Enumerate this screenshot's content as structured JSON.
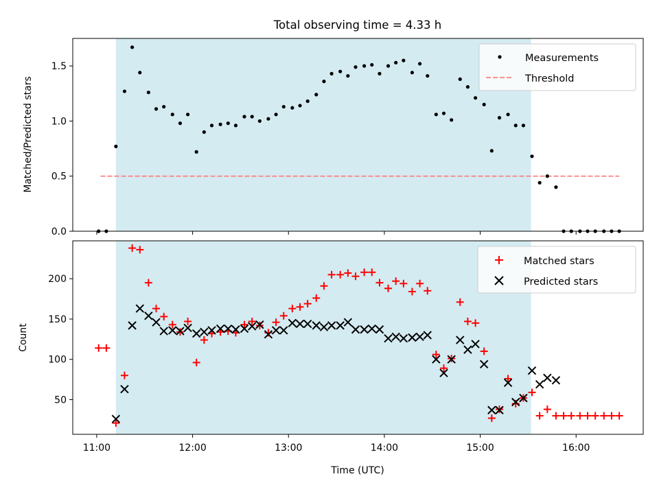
{
  "figure": {
    "title": "Total observing time = 4.33 h",
    "xlabel": "Time (UTC)",
    "xticks": [
      "11:00",
      "12:00",
      "13:00",
      "14:00",
      "15:00",
      "16:00"
    ],
    "colors": {
      "shade": "#d4ebf1",
      "measure": "#000000",
      "threshold": "#ff7f7f",
      "matched": "#ff0000",
      "predicted": "#000000"
    }
  },
  "chart_data": [
    {
      "type": "scatter",
      "ylabel": "Matched/Predicted stars",
      "xlim": [
        10.75,
        16.7
      ],
      "ylim": [
        0,
        1.75
      ],
      "yticks": [
        "0.0",
        "0.5",
        "1.0",
        "1.5"
      ],
      "ytick_values": [
        0,
        0.5,
        1.0,
        1.5
      ],
      "shaded_x": [
        11.2,
        15.53
      ],
      "legend": {
        "placement": "upper right",
        "entries": [
          "Measurements",
          "Threshold"
        ]
      },
      "threshold": {
        "name": "Threshold",
        "x": [
          11.04,
          16.45
        ],
        "y": 0.5
      },
      "series": [
        {
          "name": "Measurements",
          "points": [
            [
              11.02,
              0
            ],
            [
              11.1,
              0
            ],
            [
              11.2,
              0.77
            ],
            [
              11.29,
              1.27
            ],
            [
              11.37,
              1.67
            ],
            [
              11.45,
              1.44
            ],
            [
              11.54,
              1.26
            ],
            [
              11.62,
              1.11
            ],
            [
              11.7,
              1.13
            ],
            [
              11.79,
              1.06
            ],
            [
              11.87,
              0.98
            ],
            [
              11.95,
              1.06
            ],
            [
              12.04,
              0.72
            ],
            [
              12.12,
              0.9
            ],
            [
              12.2,
              0.96
            ],
            [
              12.29,
              0.97
            ],
            [
              12.37,
              0.98
            ],
            [
              12.45,
              0.96
            ],
            [
              12.54,
              1.04
            ],
            [
              12.62,
              1.04
            ],
            [
              12.7,
              1.0
            ],
            [
              12.79,
              1.02
            ],
            [
              12.87,
              1.06
            ],
            [
              12.95,
              1.13
            ],
            [
              13.04,
              1.12
            ],
            [
              13.12,
              1.14
            ],
            [
              13.2,
              1.18
            ],
            [
              13.29,
              1.24
            ],
            [
              13.37,
              1.36
            ],
            [
              13.45,
              1.43
            ],
            [
              13.54,
              1.45
            ],
            [
              13.62,
              1.41
            ],
            [
              13.7,
              1.49
            ],
            [
              13.79,
              1.5
            ],
            [
              13.87,
              1.51
            ],
            [
              13.95,
              1.43
            ],
            [
              14.04,
              1.5
            ],
            [
              14.12,
              1.53
            ],
            [
              14.2,
              1.55
            ],
            [
              14.29,
              1.44
            ],
            [
              14.37,
              1.52
            ],
            [
              14.45,
              1.41
            ],
            [
              14.54,
              1.06
            ],
            [
              14.62,
              1.07
            ],
            [
              14.7,
              1.01
            ],
            [
              14.79,
              1.38
            ],
            [
              14.87,
              1.31
            ],
            [
              14.95,
              1.21
            ],
            [
              15.04,
              1.15
            ],
            [
              15.12,
              0.73
            ],
            [
              15.2,
              1.03
            ],
            [
              15.29,
              1.06
            ],
            [
              15.37,
              0.96
            ],
            [
              15.45,
              0.96
            ],
            [
              15.54,
              0.68
            ],
            [
              15.62,
              0.44
            ],
            [
              15.7,
              0.5
            ],
            [
              15.79,
              0.4
            ],
            [
              15.87,
              0
            ],
            [
              15.95,
              0
            ],
            [
              16.04,
              0
            ],
            [
              16.12,
              0
            ],
            [
              16.2,
              0
            ],
            [
              16.29,
              0
            ],
            [
              16.37,
              0
            ],
            [
              16.45,
              0
            ]
          ]
        }
      ]
    },
    {
      "type": "scatter",
      "ylabel": "Count",
      "xlim": [
        10.75,
        16.7
      ],
      "ylim": [
        7,
        247
      ],
      "yticks": [
        "50",
        "100",
        "150",
        "200"
      ],
      "ytick_values": [
        50,
        100,
        150,
        200
      ],
      "shaded_x": [
        11.2,
        15.53
      ],
      "legend": {
        "placement": "upper right",
        "entries": [
          "Matched stars",
          "Predicted stars"
        ]
      },
      "series": [
        {
          "name": "Matched stars",
          "points": [
            [
              11.02,
              114
            ],
            [
              11.1,
              114
            ],
            [
              11.2,
              21
            ],
            [
              11.29,
              80
            ],
            [
              11.37,
              238
            ],
            [
              11.45,
              236
            ],
            [
              11.54,
              195
            ],
            [
              11.62,
              163
            ],
            [
              11.7,
              153
            ],
            [
              11.79,
              143
            ],
            [
              11.87,
              134
            ],
            [
              11.95,
              147
            ],
            [
              12.04,
              96
            ],
            [
              12.12,
              124
            ],
            [
              12.2,
              132
            ],
            [
              12.29,
              134
            ],
            [
              12.37,
              135
            ],
            [
              12.45,
              133
            ],
            [
              12.54,
              143
            ],
            [
              12.62,
              147
            ],
            [
              12.7,
              142
            ],
            [
              12.79,
              133
            ],
            [
              12.87,
              146
            ],
            [
              12.95,
              154
            ],
            [
              13.04,
              163
            ],
            [
              13.12,
              165
            ],
            [
              13.2,
              169
            ],
            [
              13.29,
              176
            ],
            [
              13.37,
              191
            ],
            [
              13.45,
              205
            ],
            [
              13.54,
              205
            ],
            [
              13.62,
              207
            ],
            [
              13.7,
              203
            ],
            [
              13.79,
              208
            ],
            [
              13.87,
              208
            ],
            [
              13.95,
              195
            ],
            [
              14.04,
              188
            ],
            [
              14.12,
              197
            ],
            [
              14.2,
              194
            ],
            [
              14.29,
              184
            ],
            [
              14.37,
              194
            ],
            [
              14.45,
              185
            ],
            [
              14.54,
              106
            ],
            [
              14.62,
              89
            ],
            [
              14.7,
              101
            ],
            [
              14.79,
              171
            ],
            [
              14.87,
              147
            ],
            [
              14.95,
              145
            ],
            [
              15.04,
              110
            ],
            [
              15.12,
              27
            ],
            [
              15.2,
              38
            ],
            [
              15.29,
              76
            ],
            [
              15.37,
              45
            ],
            [
              15.45,
              52
            ],
            [
              15.54,
              59
            ],
            [
              15.62,
              30
            ],
            [
              15.7,
              38
            ],
            [
              15.79,
              30
            ],
            [
              15.87,
              30
            ],
            [
              15.95,
              30
            ],
            [
              16.04,
              30
            ],
            [
              16.12,
              30
            ],
            [
              16.2,
              30
            ],
            [
              16.29,
              30
            ],
            [
              16.37,
              30
            ],
            [
              16.45,
              30
            ]
          ]
        },
        {
          "name": "Predicted stars",
          "points": [
            [
              11.2,
              26
            ],
            [
              11.29,
              63
            ],
            [
              11.37,
              142
            ],
            [
              11.45,
              163
            ],
            [
              11.54,
              154
            ],
            [
              11.62,
              146
            ],
            [
              11.7,
              135
            ],
            [
              11.79,
              136
            ],
            [
              11.87,
              135
            ],
            [
              11.95,
              139
            ],
            [
              12.04,
              132
            ],
            [
              12.12,
              134
            ],
            [
              12.2,
              136
            ],
            [
              12.29,
              138
            ],
            [
              12.37,
              138
            ],
            [
              12.45,
              137
            ],
            [
              12.54,
              138
            ],
            [
              12.62,
              141
            ],
            [
              12.7,
              143
            ],
            [
              12.79,
              131
            ],
            [
              12.87,
              136
            ],
            [
              12.95,
              136
            ],
            [
              13.04,
              145
            ],
            [
              13.12,
              144
            ],
            [
              13.2,
              144
            ],
            [
              13.29,
              142
            ],
            [
              13.37,
              140
            ],
            [
              13.45,
              142
            ],
            [
              13.54,
              142
            ],
            [
              13.62,
              146
            ],
            [
              13.7,
              137
            ],
            [
              13.79,
              137
            ],
            [
              13.87,
              138
            ],
            [
              13.95,
              137
            ],
            [
              14.04,
              126
            ],
            [
              14.12,
              128
            ],
            [
              14.2,
              126
            ],
            [
              14.29,
              127
            ],
            [
              14.37,
              128
            ],
            [
              14.45,
              130
            ],
            [
              14.54,
              100
            ],
            [
              14.62,
              83
            ],
            [
              14.7,
              100
            ],
            [
              14.79,
              124
            ],
            [
              14.87,
              112
            ],
            [
              14.95,
              119
            ],
            [
              15.04,
              94
            ],
            [
              15.12,
              37
            ],
            [
              15.2,
              37
            ],
            [
              15.29,
              71
            ],
            [
              15.37,
              47
            ],
            [
              15.45,
              52
            ],
            [
              15.54,
              86
            ],
            [
              15.62,
              69
            ],
            [
              15.7,
              77
            ],
            [
              15.79,
              74
            ]
          ]
        }
      ]
    }
  ]
}
